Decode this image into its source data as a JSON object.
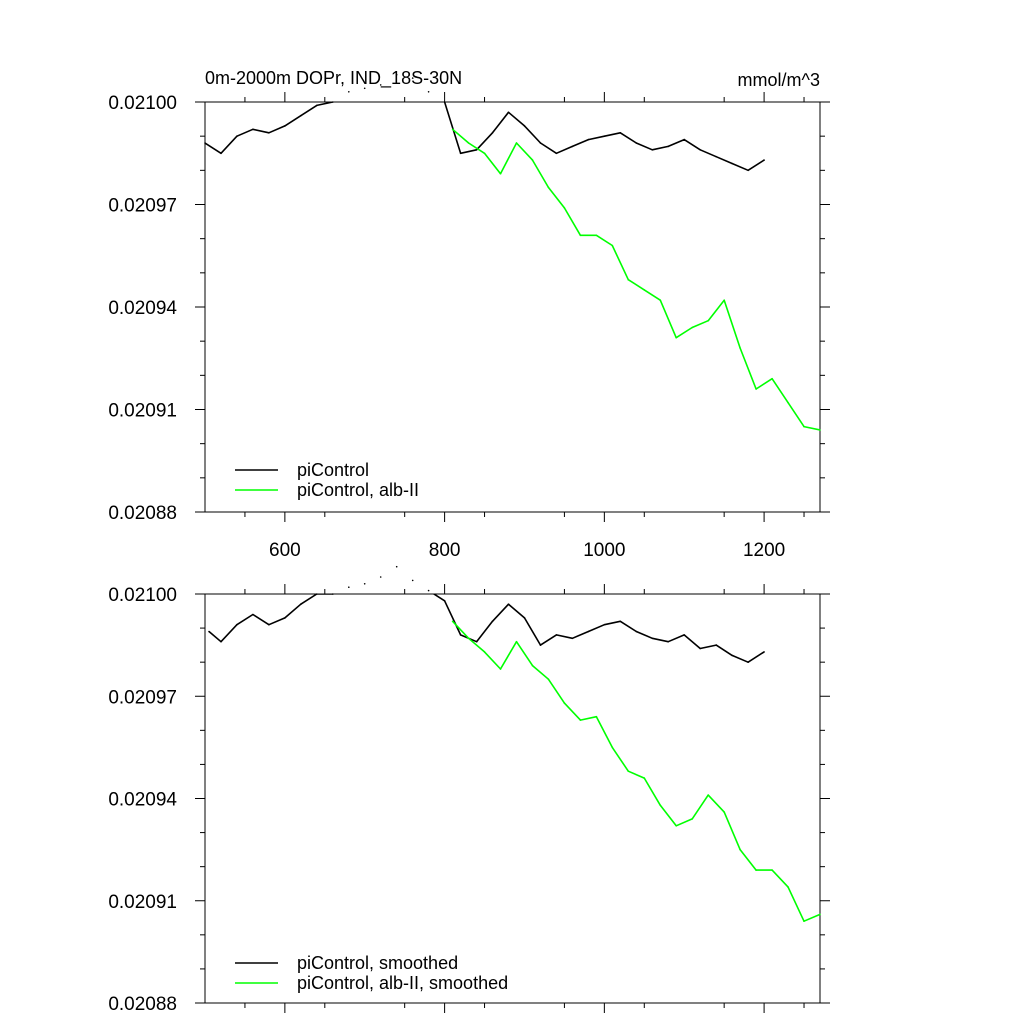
{
  "figure": {
    "title_left": "0m-2000m DOPr, IND_18S-30N",
    "title_right": "mmol/m^3"
  },
  "chart_data": [
    {
      "type": "line",
      "panel": "top",
      "title": "0m-2000m DOPr, IND_18S-30N",
      "units": "mmol/m^3",
      "xlim": [
        500,
        1270
      ],
      "ylim": [
        0.02088,
        0.021
      ],
      "x_ticks": [
        600,
        800,
        1000,
        1200
      ],
      "x_tick_labels": [
        "600",
        "800",
        "1000",
        "1200"
      ],
      "y_ticks": [
        0.02088,
        0.02091,
        0.02094,
        0.02097,
        0.021
      ],
      "y_tick_labels": [
        "0.02088",
        "0.02091",
        "0.02094",
        "0.02097",
        "0.02100"
      ],
      "legend": {
        "position": "bottom-left",
        "entries": [
          "piControl",
          "piControl, alb-II"
        ]
      },
      "series": [
        {
          "name": "piControl",
          "color": "#000000",
          "x": [
            500,
            520,
            540,
            560,
            580,
            600,
            620,
            640,
            660,
            680,
            700,
            720,
            740,
            760,
            780,
            800,
            820,
            840,
            860,
            880,
            900,
            920,
            940,
            960,
            980,
            1000,
            1020,
            1040,
            1060,
            1080,
            1100,
            1120,
            1140,
            1160,
            1180,
            1200
          ],
          "values": [
            0.020988,
            0.020985,
            0.02099,
            0.020992,
            0.020991,
            0.020993,
            0.020996,
            0.020999,
            0.021,
            0.021003,
            0.021004,
            0.021005,
            0.021008,
            0.021007,
            0.021003,
            0.021,
            0.020985,
            0.020986,
            0.020991,
            0.020997,
            0.020993,
            0.020988,
            0.020985,
            0.020987,
            0.020989,
            0.02099,
            0.020991,
            0.020988,
            0.020986,
            0.020987,
            0.020989,
            0.020986,
            0.020984,
            0.020982,
            0.02098,
            0.020983
          ]
        },
        {
          "name": "piControl, alb-II",
          "color": "#00ff00",
          "x": [
            810,
            830,
            850,
            870,
            890,
            910,
            930,
            950,
            970,
            990,
            1010,
            1030,
            1050,
            1070,
            1090,
            1110,
            1130,
            1150,
            1170,
            1190,
            1210,
            1230,
            1250,
            1270
          ],
          "values": [
            0.020992,
            0.020988,
            0.020985,
            0.020979,
            0.020988,
            0.020983,
            0.020975,
            0.020969,
            0.020961,
            0.020961,
            0.020958,
            0.020948,
            0.020945,
            0.020942,
            0.020931,
            0.020934,
            0.020936,
            0.020942,
            0.020928,
            0.020916,
            0.020919,
            0.020912,
            0.020905,
            0.020904
          ]
        }
      ]
    },
    {
      "type": "line",
      "panel": "bottom",
      "xlim": [
        500,
        1270
      ],
      "ylim": [
        0.02088,
        0.021
      ],
      "x_ticks": [
        600,
        800,
        1000,
        1200
      ],
      "x_tick_labels": [],
      "y_ticks": [
        0.02088,
        0.02091,
        0.02094,
        0.02097,
        0.021
      ],
      "y_tick_labels": [
        "0.02088",
        "0.02091",
        "0.02094",
        "0.02097",
        "0.02100"
      ],
      "legend": {
        "position": "bottom-left",
        "entries": [
          "piControl, smoothed",
          "piControl, alb-II, smoothed"
        ]
      },
      "series": [
        {
          "name": "piControl, smoothed",
          "color": "#000000",
          "x": [
            505,
            520,
            540,
            560,
            580,
            600,
            620,
            640,
            660,
            680,
            700,
            720,
            740,
            760,
            780,
            800,
            820,
            840,
            860,
            880,
            900,
            920,
            940,
            960,
            980,
            1000,
            1020,
            1040,
            1060,
            1080,
            1100,
            1120,
            1140,
            1160,
            1180,
            1200
          ],
          "values": [
            0.020989,
            0.020986,
            0.020991,
            0.020994,
            0.020991,
            0.020993,
            0.020997,
            0.021,
            0.021,
            0.021002,
            0.021003,
            0.021005,
            0.021008,
            0.021004,
            0.021001,
            0.020998,
            0.020988,
            0.020986,
            0.020992,
            0.020997,
            0.020993,
            0.020985,
            0.020988,
            0.020987,
            0.020989,
            0.020991,
            0.020992,
            0.020989,
            0.020987,
            0.020986,
            0.020988,
            0.020984,
            0.020985,
            0.020982,
            0.02098,
            0.020983
          ]
        },
        {
          "name": "piControl, alb-II, smoothed",
          "color": "#00ff00",
          "x": [
            810,
            830,
            850,
            870,
            890,
            910,
            930,
            950,
            970,
            990,
            1010,
            1030,
            1050,
            1070,
            1090,
            1110,
            1130,
            1150,
            1170,
            1190,
            1210,
            1230,
            1250,
            1270
          ],
          "values": [
            0.020992,
            0.020987,
            0.020983,
            0.020978,
            0.020986,
            0.020979,
            0.020975,
            0.020968,
            0.020963,
            0.020964,
            0.020955,
            0.020948,
            0.020946,
            0.020938,
            0.020932,
            0.020934,
            0.020941,
            0.020936,
            0.020925,
            0.020919,
            0.020919,
            0.020914,
            0.020904,
            0.020906
          ]
        }
      ]
    }
  ]
}
